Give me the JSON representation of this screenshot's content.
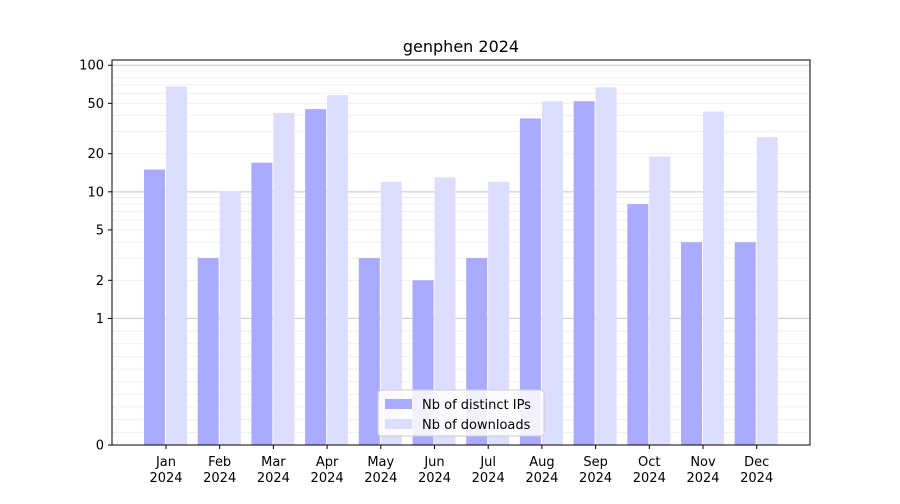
{
  "chart_data": {
    "type": "bar",
    "title": "genphen 2024",
    "xlabel": "",
    "ylabel": "",
    "yscale": "symlog",
    "ylim": [
      0,
      110
    ],
    "categories": [
      [
        "Jan",
        "2024"
      ],
      [
        "Feb",
        "2024"
      ],
      [
        "Mar",
        "2024"
      ],
      [
        "Apr",
        "2024"
      ],
      [
        "May",
        "2024"
      ],
      [
        "Jun",
        "2024"
      ],
      [
        "Jul",
        "2024"
      ],
      [
        "Aug",
        "2024"
      ],
      [
        "Sep",
        "2024"
      ],
      [
        "Oct",
        "2024"
      ],
      [
        "Nov",
        "2024"
      ],
      [
        "Dec",
        "2024"
      ]
    ],
    "y_ticks": [
      {
        "value": 0,
        "label": "0"
      },
      {
        "value": 1,
        "label": "1"
      },
      {
        "value": 2,
        "label": "2"
      },
      {
        "value": 5,
        "label": "5"
      },
      {
        "value": 10,
        "label": "10"
      },
      {
        "value": 20,
        "label": "20"
      },
      {
        "value": 50,
        "label": "50"
      },
      {
        "value": 100,
        "label": "100"
      }
    ],
    "series": [
      {
        "name": "Nb of distinct IPs",
        "color": "#aaaaff",
        "values": [
          15,
          3,
          17,
          45,
          3,
          2,
          3,
          38,
          52,
          8,
          4,
          4
        ]
      },
      {
        "name": "Nb of downloads",
        "color": "#ddddff",
        "values": [
          68,
          10,
          42,
          58,
          12,
          13,
          12,
          52,
          67,
          19,
          43,
          27
        ]
      }
    ],
    "grid": true,
    "legend_position": "bottom-center"
  }
}
